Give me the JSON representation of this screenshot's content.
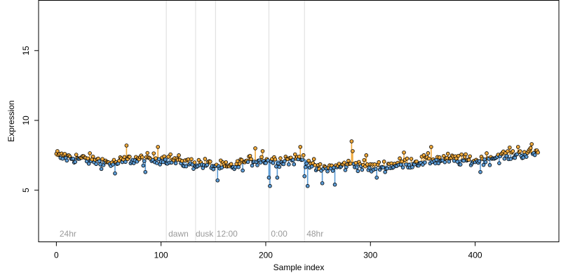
{
  "chart_data": {
    "type": "scatter",
    "title": "",
    "xlabel": "Sample index",
    "ylabel": "Expression",
    "xlim": [
      -17,
      480
    ],
    "ylim": [
      1.3,
      18.6
    ],
    "x_ticks": [
      0,
      100,
      200,
      300,
      400
    ],
    "y_ticks": [
      5,
      10,
      15
    ],
    "grid": false,
    "legend": "none",
    "colors": {
      "above_fit": "#f0a93b",
      "below_fit": "#5b9bd5",
      "point_edge": "#000000",
      "vline": "#dcdcdc",
      "annotation_text": "#9a9a9a"
    },
    "vertical_markers": [
      105,
      133,
      152,
      203,
      237
    ],
    "annotations": [
      {
        "x": 3,
        "label": "24hr"
      },
      {
        "x": 107,
        "label": "dawn"
      },
      {
        "x": 133,
        "label": "dusk"
      },
      {
        "x": 153,
        "label": "12:00"
      },
      {
        "x": 205,
        "label": "0:00"
      },
      {
        "x": 239,
        "label": "48hr"
      }
    ],
    "n_points": 461,
    "fit_trend": [
      [
        0,
        7.4
      ],
      [
        20,
        7.3
      ],
      [
        40,
        7.1
      ],
      [
        55,
        6.9
      ],
      [
        70,
        7.2
      ],
      [
        90,
        7.2
      ],
      [
        104,
        7.3
      ],
      [
        120,
        7.0
      ],
      [
        135,
        6.9
      ],
      [
        150,
        6.8
      ],
      [
        165,
        6.6
      ],
      [
        185,
        7.1
      ],
      [
        200,
        7.2
      ],
      [
        215,
        7.1
      ],
      [
        236,
        7.3
      ],
      [
        250,
        6.5
      ],
      [
        270,
        6.7
      ],
      [
        285,
        6.9
      ],
      [
        300,
        6.6
      ],
      [
        330,
        6.9
      ],
      [
        360,
        7.2
      ],
      [
        380,
        7.2
      ],
      [
        400,
        7.1
      ],
      [
        420,
        7.4
      ],
      [
        440,
        7.6
      ],
      [
        462,
        7.7
      ]
    ],
    "points": [
      {
        "x": 1,
        "y": 7.8
      },
      {
        "x": 8,
        "y": 7.6
      },
      {
        "x": 20,
        "y": 7.3
      },
      {
        "x": 45,
        "y": 6.8
      },
      {
        "x": 56,
        "y": 6.2
      },
      {
        "x": 67,
        "y": 8.2
      },
      {
        "x": 85,
        "y": 6.3
      },
      {
        "x": 97,
        "y": 8.1
      },
      {
        "x": 120,
        "y": 7.1
      },
      {
        "x": 150,
        "y": 6.5
      },
      {
        "x": 154,
        "y": 5.7
      },
      {
        "x": 180,
        "y": 7.0
      },
      {
        "x": 190,
        "y": 8.0
      },
      {
        "x": 197,
        "y": 7.8
      },
      {
        "x": 203,
        "y": 5.9
      },
      {
        "x": 204,
        "y": 5.3
      },
      {
        "x": 211,
        "y": 5.9
      },
      {
        "x": 219,
        "y": 7.4
      },
      {
        "x": 233,
        "y": 8.1
      },
      {
        "x": 237,
        "y": 6.0
      },
      {
        "x": 240,
        "y": 5.3
      },
      {
        "x": 254,
        "y": 5.5
      },
      {
        "x": 266,
        "y": 5.4
      },
      {
        "x": 282,
        "y": 8.5
      },
      {
        "x": 283,
        "y": 7.8
      },
      {
        "x": 296,
        "y": 7.5
      },
      {
        "x": 306,
        "y": 5.9
      },
      {
        "x": 332,
        "y": 7.7
      },
      {
        "x": 358,
        "y": 8.1
      },
      {
        "x": 405,
        "y": 6.3
      },
      {
        "x": 441,
        "y": 8.1
      },
      {
        "x": 454,
        "y": 8.3
      },
      {
        "x": 460,
        "y": 7.7
      }
    ]
  }
}
